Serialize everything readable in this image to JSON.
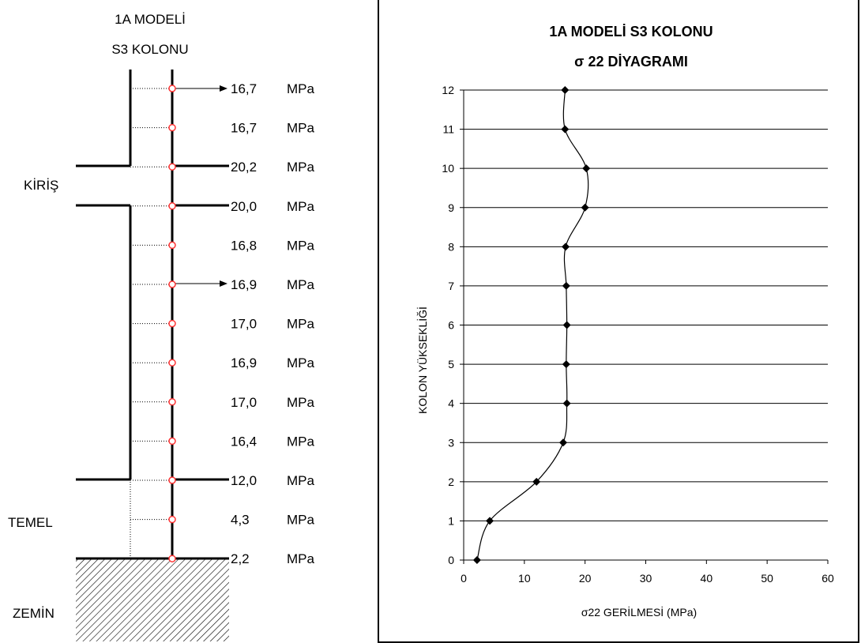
{
  "left": {
    "title_line1": "1A MODELİ",
    "title_line2": "S3 KOLONU",
    "unit": "MPa",
    "stress_labels": [
      "16,7",
      "16,7",
      "20,2",
      "20,0",
      "16,8",
      "16,9",
      "17,0",
      "16,9",
      "17,0",
      "16,4",
      "12,0",
      "4,3",
      "2,2"
    ],
    "beam_label": "KİRİŞ",
    "foundation_label": "TEMEL",
    "soil_label": "ZEMİN"
  },
  "chart_data": {
    "type": "line",
    "title": "1A MODELİ S3 KOLONU",
    "subtitle": "σ 22 DİYAGRAMI",
    "xlabel": "σ22 GERİLMESİ (MPa)",
    "ylabel": "KOLON YÜKSEKLİĞİ",
    "xlim": [
      0,
      60
    ],
    "ylim": [
      0,
      12
    ],
    "x_ticks": [
      0,
      10,
      20,
      30,
      40,
      50,
      60
    ],
    "y_ticks": [
      0,
      1,
      2,
      3,
      4,
      5,
      6,
      7,
      8,
      9,
      10,
      11,
      12
    ],
    "grid": "horizontal",
    "series": [
      {
        "x": [
          2.2,
          4.3,
          12.0,
          16.4,
          17.0,
          16.9,
          17.0,
          16.9,
          16.8,
          20.0,
          20.2,
          16.7,
          16.7
        ],
        "y": [
          0,
          1,
          2,
          3,
          4,
          5,
          6,
          7,
          8,
          9,
          10,
          11,
          12
        ]
      }
    ],
    "colors": {
      "line": "#000000",
      "marker": "#000000",
      "grid": "#000000"
    }
  }
}
